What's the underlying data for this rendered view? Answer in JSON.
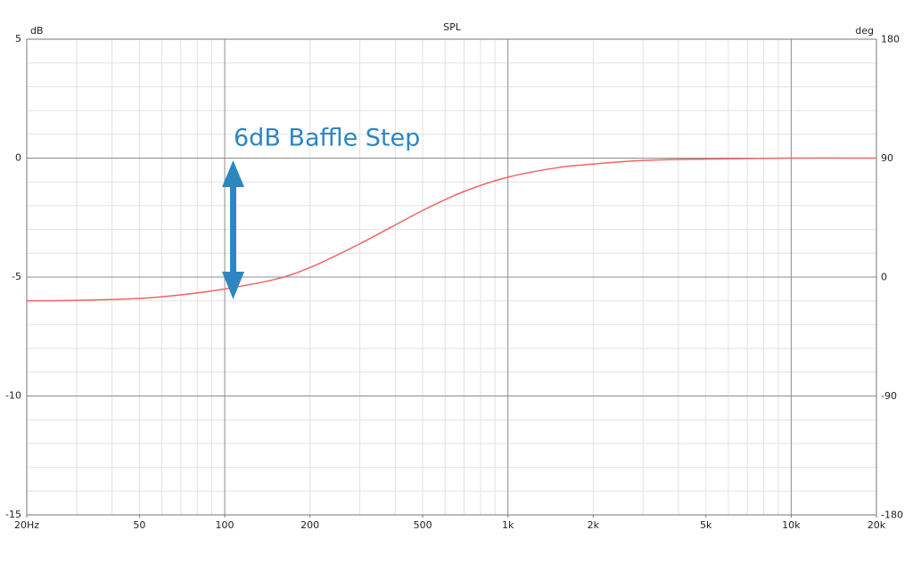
{
  "chart_data": {
    "type": "line",
    "title": "SPL",
    "y_label": "dB",
    "y2_label": "deg",
    "annotation": "6dB Baffle Step",
    "x_log": true,
    "grid": true,
    "x": [
      20,
      30,
      50,
      70,
      100,
      150,
      200,
      300,
      500,
      700,
      1000,
      1500,
      2000,
      3000,
      5000,
      10000,
      20000
    ],
    "series": [
      {
        "color": "#f06464",
        "values": [
          -6.0,
          -5.98,
          -5.9,
          -5.75,
          -5.5,
          -5.1,
          -4.6,
          -3.6,
          -2.2,
          -1.4,
          -0.8,
          -0.4,
          -0.25,
          -0.1,
          -0.04,
          0,
          0
        ]
      }
    ],
    "xlim": [
      20,
      20000
    ],
    "xticks": [
      {
        "value": 20,
        "label": "20Hz"
      },
      50,
      100,
      200,
      500,
      {
        "value": 1000,
        "label": "1k"
      },
      {
        "value": 2000,
        "label": "2k"
      },
      {
        "value": 5000,
        "label": "5k"
      },
      {
        "value": 10000,
        "label": "10k"
      },
      {
        "value": 20000,
        "label": "20k"
      }
    ],
    "x_major_grid": [
      100,
      1000,
      10000
    ],
    "x_minor_grid": [
      30,
      40,
      50,
      60,
      70,
      80,
      90,
      200,
      300,
      400,
      500,
      600,
      700,
      800,
      900,
      2000,
      3000,
      4000,
      5000,
      6000,
      7000,
      8000,
      9000
    ],
    "ylim": [
      -15,
      5
    ],
    "yticks": [
      5,
      0,
      -5,
      -10,
      -15
    ],
    "y_minor_grid": [
      4,
      3,
      2,
      1,
      -1,
      -2,
      -3,
      -4,
      -6,
      -7,
      -8,
      -9,
      -11,
      -12,
      -13,
      -14
    ],
    "y2lim": [
      -180,
      180
    ],
    "y2ticks": [
      180,
      90,
      0,
      -90,
      -180
    ]
  }
}
